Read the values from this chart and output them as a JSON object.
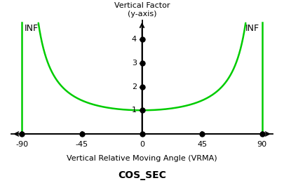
{
  "title": "COS_SEC",
  "xlabel": "Vertical Relative Moving Angle (VRMA)",
  "ylabel": "Vertical Factor\n(y-axis)",
  "x_ticks": [
    -90,
    -45,
    0,
    45,
    90
  ],
  "y_ticks": [
    1,
    2,
    3,
    4
  ],
  "x_range": [
    -90,
    90
  ],
  "y_range": [
    0,
    4.5
  ],
  "curve_color": "#00cc00",
  "dot_color": "#000000",
  "dot_size": 5,
  "line_width": 1.8,
  "inf_label": "INF",
  "inf_fontsize": 9,
  "title_fontsize": 10,
  "axis_label_fontsize": 8,
  "tick_fontsize": 8,
  "background_color": "#ffffff"
}
